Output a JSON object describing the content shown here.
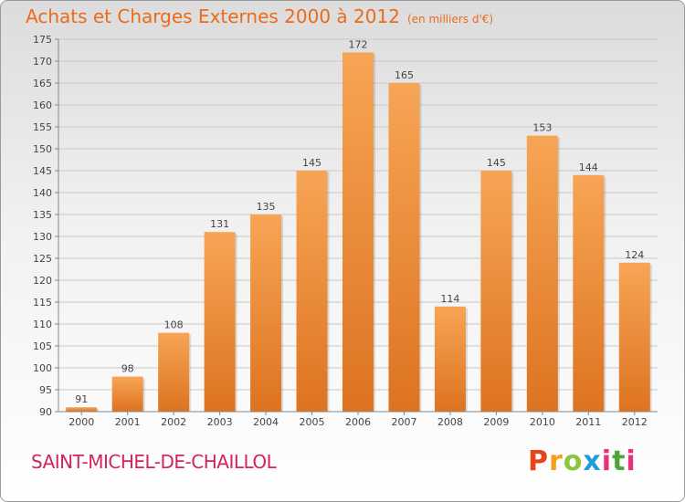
{
  "header": {
    "title": "Achats et Charges Externes 2000 à 2012",
    "unit": "(en milliers d'€)"
  },
  "footer": {
    "city": "SAINT-MICHEL-DE-CHAILLOL",
    "logo": "Proxiti"
  },
  "colors": {
    "bar_light": "#f7a555",
    "bar_dark": "#dd7320",
    "title": "#ec6a1c",
    "city": "#d0245e"
  },
  "chart_data": {
    "type": "bar",
    "categories": [
      "2000",
      "2001",
      "2002",
      "2003",
      "2004",
      "2005",
      "2006",
      "2007",
      "2008",
      "2009",
      "2010",
      "2011",
      "2012"
    ],
    "values": [
      91,
      98,
      108,
      131,
      135,
      145,
      172,
      165,
      114,
      145,
      153,
      144,
      124
    ],
    "ylim": [
      90,
      175
    ],
    "yticks": [
      90,
      95,
      100,
      105,
      110,
      115,
      120,
      125,
      130,
      135,
      140,
      145,
      150,
      155,
      160,
      165,
      170,
      175
    ],
    "grid": true,
    "data_labels": true
  }
}
